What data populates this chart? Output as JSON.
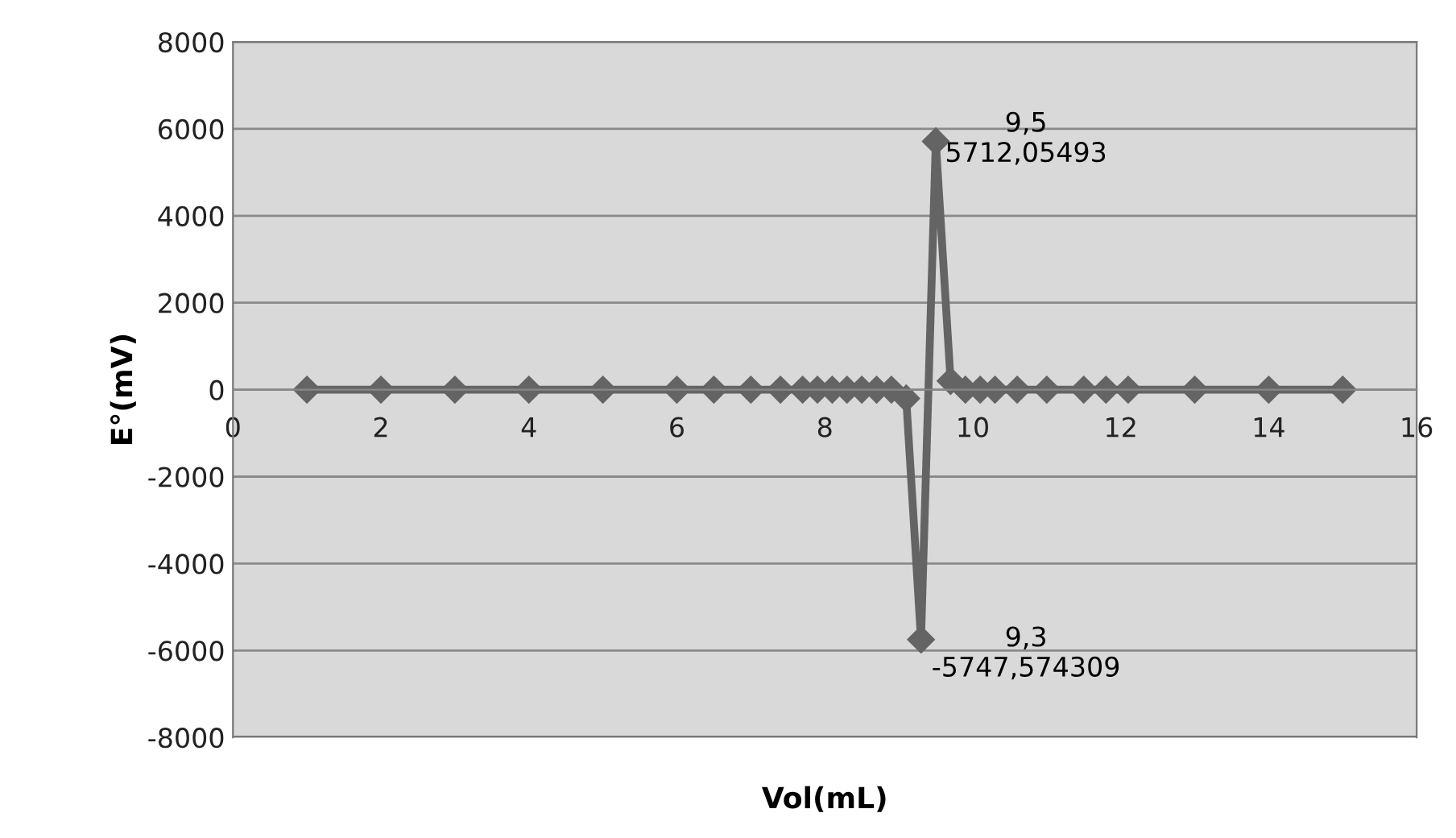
{
  "chart_data": {
    "type": "line",
    "xlabel": "Vol(mL)",
    "ylabel": "E°(mV)",
    "x": [
      1,
      2,
      3,
      4,
      5,
      6,
      6.5,
      7,
      7.4,
      7.7,
      7.9,
      8.1,
      8.3,
      8.5,
      8.7,
      8.9,
      9.1,
      9.3,
      9.5,
      9.7,
      9.9,
      10.1,
      10.3,
      10.6,
      11,
      11.5,
      11.8,
      12.1,
      13,
      14,
      15
    ],
    "series": [
      {
        "color": "#646464",
        "values": [
          0,
          0,
          0,
          0,
          0,
          0,
          0,
          0,
          0,
          0,
          0,
          0,
          0,
          0,
          0,
          0,
          -200,
          -5747.574309,
          5712.05493,
          200,
          0,
          0,
          0,
          0,
          0,
          0,
          0,
          0,
          0,
          0,
          0
        ]
      }
    ],
    "marker": "diamond",
    "line_style": "solid",
    "grid": "y",
    "legend": false,
    "xlim": [
      0,
      16
    ],
    "xticks": [
      0,
      2,
      4,
      6,
      8,
      10,
      12,
      14,
      16
    ],
    "ylim": [
      -8000,
      8000
    ],
    "yticks": [
      -8000,
      -6000,
      -4000,
      -2000,
      0,
      2000,
      4000,
      6000,
      8000
    ],
    "annotations": [
      "9,5\n5712,05493",
      "9,3\n-5747,574309"
    ]
  }
}
